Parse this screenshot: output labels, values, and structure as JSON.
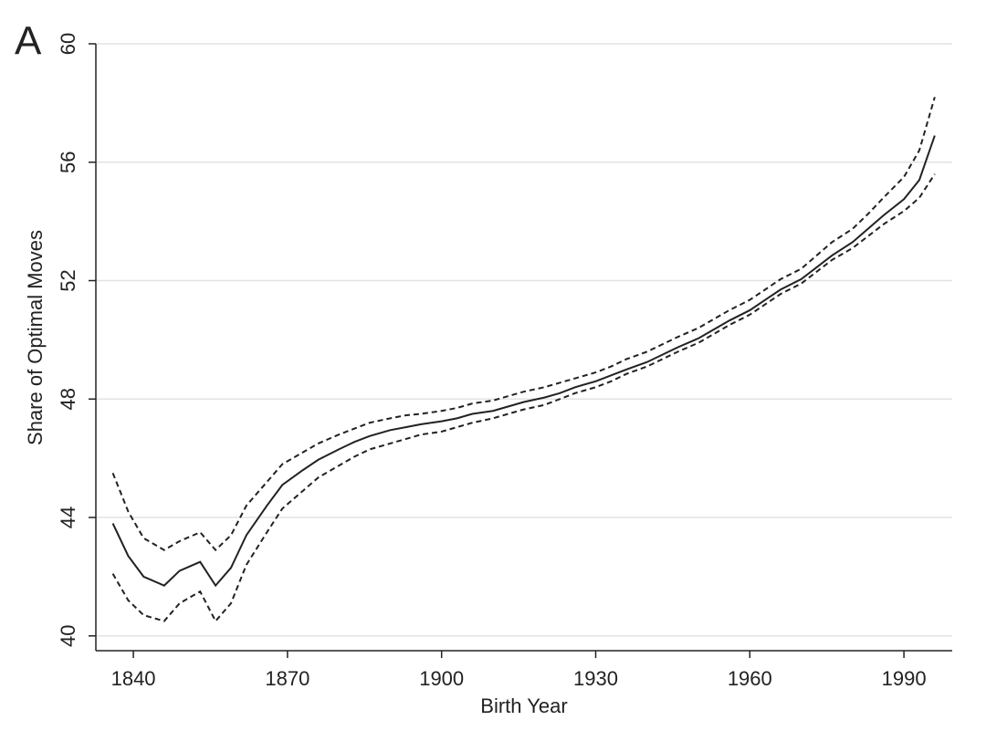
{
  "chart_data": {
    "type": "line",
    "panel_label": "A",
    "xlabel": "Birth Year",
    "ylabel": "Share of Optimal Moves",
    "x": [
      1836,
      1839,
      1842,
      1846,
      1849,
      1853,
      1856,
      1859,
      1862,
      1866,
      1869,
      1873,
      1876,
      1880,
      1883,
      1886,
      1890,
      1893,
      1896,
      1900,
      1903,
      1906,
      1910,
      1913,
      1916,
      1920,
      1923,
      1926,
      1930,
      1933,
      1936,
      1940,
      1943,
      1946,
      1950,
      1953,
      1956,
      1960,
      1963,
      1966,
      1970,
      1973,
      1976,
      1980,
      1983,
      1986,
      1990,
      1993,
      1996
    ],
    "series": [
      {
        "color": "#222222",
        "dashed": false,
        "values": [
          43.8,
          42.7,
          42.0,
          41.7,
          42.2,
          42.5,
          41.7,
          42.3,
          43.4,
          44.4,
          45.1,
          45.6,
          45.95,
          46.3,
          46.55,
          46.75,
          46.95,
          47.05,
          47.15,
          47.25,
          47.35,
          47.5,
          47.6,
          47.75,
          47.9,
          48.05,
          48.2,
          48.4,
          48.6,
          48.8,
          49.0,
          49.25,
          49.5,
          49.75,
          50.05,
          50.35,
          50.65,
          51.0,
          51.35,
          51.7,
          52.05,
          52.45,
          52.85,
          53.3,
          53.75,
          54.2,
          54.75,
          55.4,
          56.9
        ]
      },
      {
        "color": "#222222",
        "dashed": true,
        "values": [
          45.5,
          44.2,
          43.3,
          42.9,
          43.2,
          43.5,
          42.9,
          43.4,
          44.4,
          45.2,
          45.8,
          46.2,
          46.5,
          46.8,
          47.0,
          47.2,
          47.35,
          47.45,
          47.5,
          47.6,
          47.7,
          47.85,
          47.95,
          48.1,
          48.25,
          48.4,
          48.55,
          48.7,
          48.9,
          49.1,
          49.35,
          49.6,
          49.85,
          50.1,
          50.4,
          50.7,
          51.0,
          51.35,
          51.7,
          52.05,
          52.4,
          52.85,
          53.3,
          53.75,
          54.25,
          54.8,
          55.5,
          56.4,
          58.2
        ]
      },
      {
        "color": "#222222",
        "dashed": true,
        "values": [
          42.1,
          41.2,
          40.7,
          40.5,
          41.1,
          41.5,
          40.5,
          41.1,
          42.4,
          43.5,
          44.3,
          44.9,
          45.35,
          45.75,
          46.05,
          46.3,
          46.5,
          46.65,
          46.8,
          46.9,
          47.05,
          47.2,
          47.35,
          47.5,
          47.65,
          47.8,
          48.0,
          48.2,
          48.4,
          48.6,
          48.85,
          49.1,
          49.35,
          49.6,
          49.9,
          50.2,
          50.5,
          50.85,
          51.2,
          51.55,
          51.9,
          52.3,
          52.7,
          53.1,
          53.5,
          53.9,
          54.35,
          54.8,
          55.6
        ]
      }
    ],
    "xlim": [
      1832.7,
      1999.4
    ],
    "xticks": [
      1840,
      1870,
      1900,
      1930,
      1960,
      1990
    ],
    "ylim": [
      39.5,
      60
    ],
    "yticks": [
      40,
      44,
      48,
      52,
      56,
      60
    ],
    "grid": true
  }
}
